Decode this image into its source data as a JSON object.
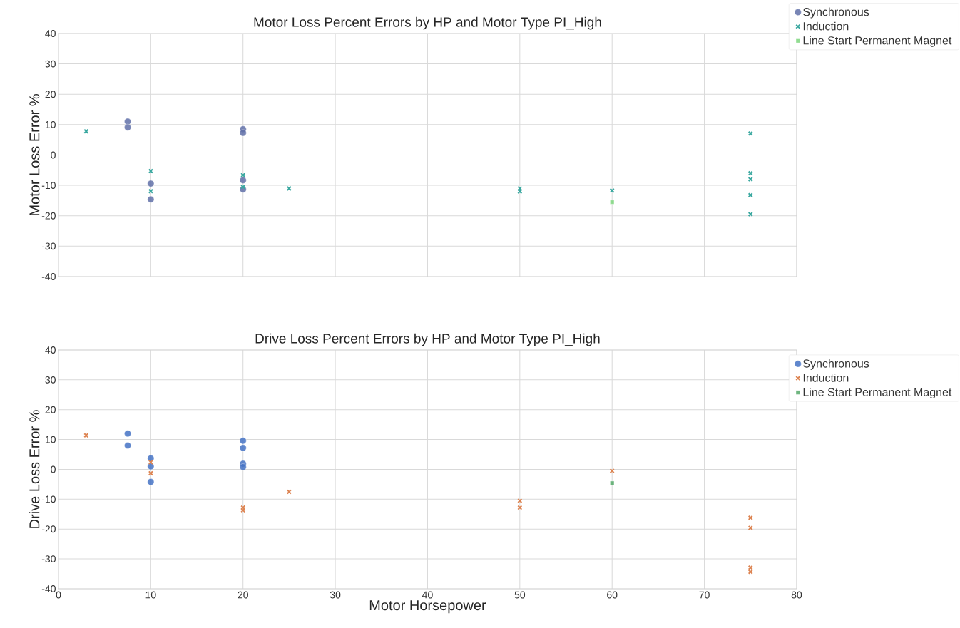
{
  "chart_data": [
    {
      "type": "scatter",
      "title": "Motor Loss Percent Errors by HP and Motor Type PI_High",
      "ylabel": "Motor Loss Error %",
      "series": [
        {
          "name": "Synchronous",
          "color": "#6070a8",
          "marker": "circle",
          "x": [
            7.5,
            7.5,
            10,
            10,
            20,
            20,
            20,
            20
          ],
          "values": [
            11.0,
            9.1,
            -9.4,
            -14.6,
            8.5,
            7.3,
            -8.3,
            -11.3
          ]
        },
        {
          "name": "Induction",
          "color": "#3aa8a0",
          "marker": "cross",
          "x": [
            3,
            10,
            10,
            20,
            20,
            25,
            50,
            50,
            60,
            75,
            75,
            75,
            75,
            75
          ],
          "values": [
            7.8,
            -5.3,
            -11.9,
            -6.6,
            -10.5,
            -11.0,
            -11.0,
            -12.0,
            -11.7,
            7.1,
            -6.0,
            -8.0,
            -13.2,
            -19.5
          ]
        },
        {
          "name": "Line Start Permanent Magnet",
          "color": "#7ed67e",
          "marker": "square",
          "x": [
            60
          ],
          "values": [
            -15.5
          ]
        }
      ],
      "xlim": [
        0,
        80
      ],
      "xticks": [
        0,
        10,
        20,
        30,
        40,
        50,
        60,
        70,
        80
      ],
      "ylim": [
        -40,
        40
      ],
      "yticks": [
        -40,
        -30,
        -20,
        -10,
        0,
        10,
        20,
        30,
        40
      ],
      "grid": true,
      "legend": "top right",
      "tick_labels": "y"
    },
    {
      "type": "scatter",
      "title": "Drive Loss Percent Errors by HP and Motor Type PI_High",
      "xlabel": "Motor Horsepower",
      "ylabel": "Drive Loss Error %",
      "series": [
        {
          "name": "Synchronous",
          "color": "#4472c4",
          "marker": "circle",
          "x": [
            7.5,
            7.5,
            10,
            10,
            10,
            20,
            20,
            20,
            20
          ],
          "values": [
            12.0,
            8.0,
            3.7,
            1.0,
            -4.2,
            9.6,
            7.2,
            1.9,
            0.8
          ]
        },
        {
          "name": "Induction",
          "color": "#dd8452",
          "marker": "cross",
          "x": [
            3,
            10,
            10,
            20,
            20,
            25,
            50,
            50,
            60,
            75,
            75,
            75,
            75
          ],
          "values": [
            11.4,
            2.4,
            -1.3,
            -12.8,
            -13.7,
            -7.5,
            -10.5,
            -12.8,
            -0.5,
            -16.2,
            -19.6,
            -32.9,
            -34.3
          ]
        },
        {
          "name": "Line Start Permanent Magnet",
          "color": "#55a868",
          "marker": "square",
          "x": [
            60
          ],
          "values": [
            -4.6
          ]
        }
      ],
      "xlim": [
        0,
        80
      ],
      "xticks": [
        0,
        10,
        20,
        30,
        40,
        50,
        60,
        70,
        80
      ],
      "ylim": [
        -40,
        40
      ],
      "yticks": [
        -40,
        -30,
        -20,
        -10,
        0,
        10,
        20,
        30,
        40
      ],
      "grid": true,
      "legend": "top right"
    }
  ]
}
